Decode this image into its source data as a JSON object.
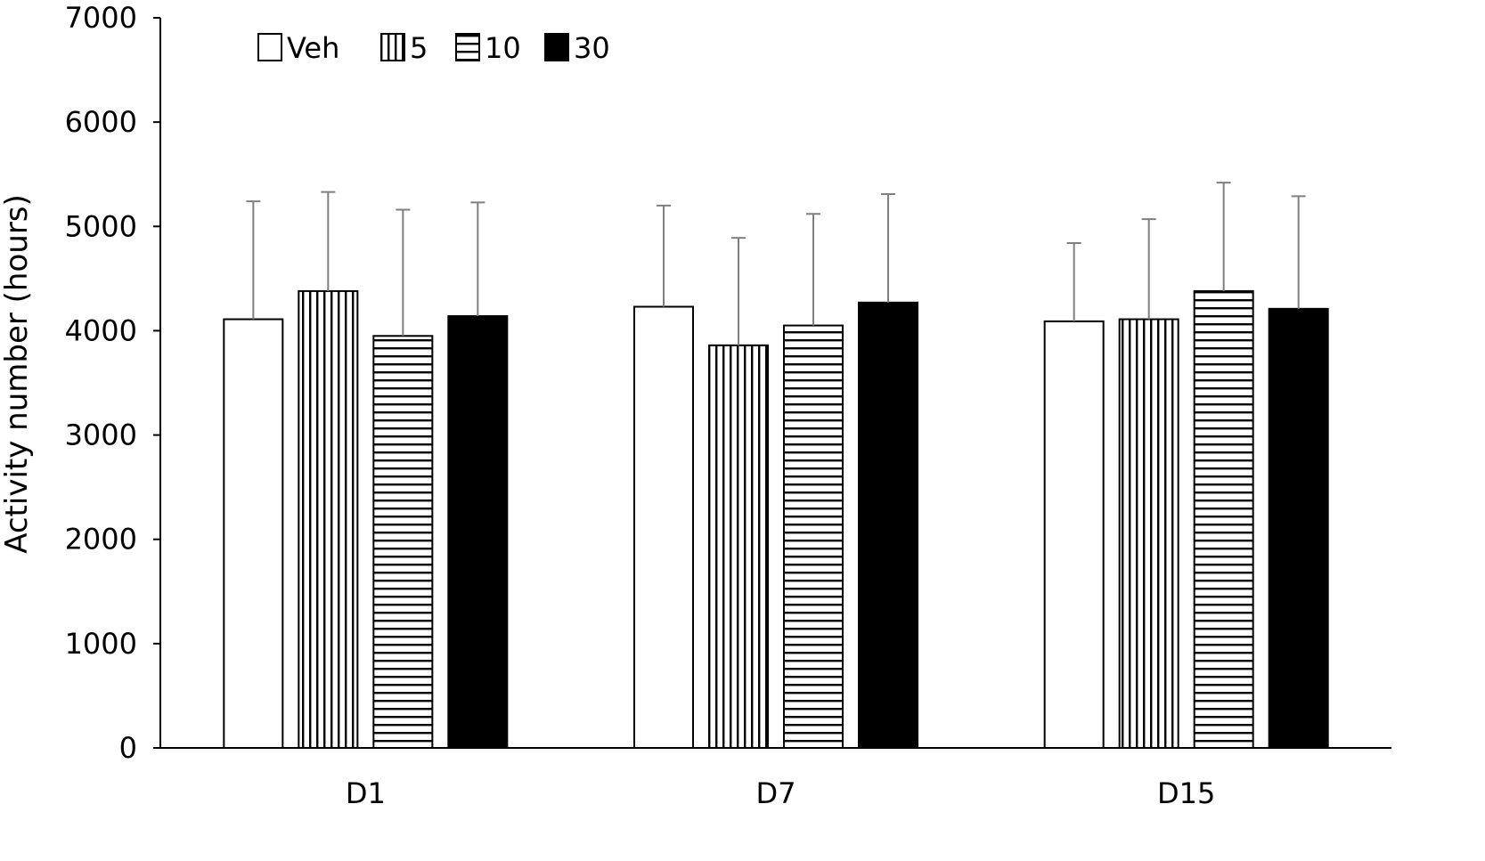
{
  "chart_data": {
    "type": "bar",
    "title": "",
    "xlabel": "",
    "ylabel": "Activity number (hours)",
    "ylim": [
      0,
      7000
    ],
    "yticks": [
      0,
      1000,
      2000,
      3000,
      4000,
      5000,
      6000,
      7000
    ],
    "grid": false,
    "legend_position": "top-left",
    "categories": [
      "D1",
      "D7",
      "D15"
    ],
    "series": [
      {
        "name": "Veh",
        "pattern": "open",
        "values": [
          4110,
          4230,
          4090
        ],
        "errors": [
          1130,
          970,
          750
        ]
      },
      {
        "name": "5",
        "pattern": "vertical-stripes",
        "values": [
          4380,
          3860,
          4110
        ],
        "errors": [
          950,
          1030,
          960
        ]
      },
      {
        "name": "10",
        "pattern": "horizontal-stripes",
        "values": [
          3950,
          4050,
          4380
        ],
        "errors": [
          1210,
          1070,
          1040
        ]
      },
      {
        "name": "30",
        "pattern": "solid",
        "values": [
          4140,
          4270,
          4210
        ],
        "errors": [
          1090,
          1040,
          1080
        ]
      }
    ],
    "colors": {
      "bar_edge": "#000000",
      "fill_solid": "#000000",
      "fill_open": "#ffffff",
      "error_bar": "#7f7f7f",
      "axis": "#000000"
    }
  }
}
